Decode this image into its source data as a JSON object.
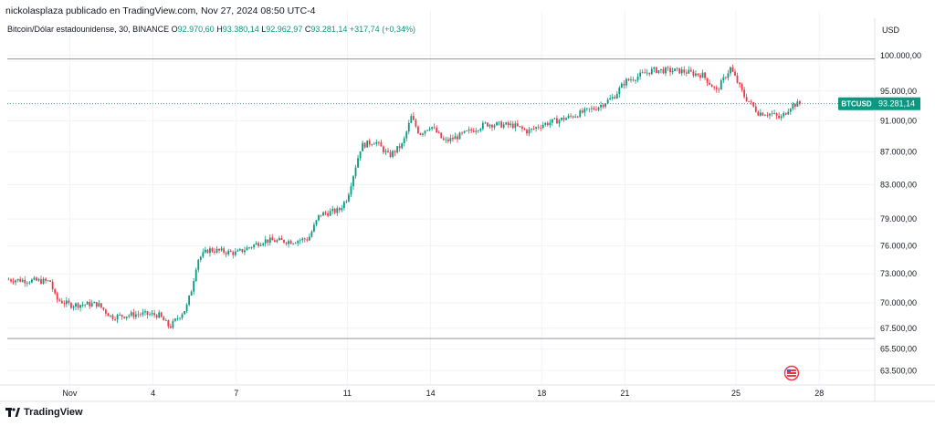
{
  "header": {
    "published_by": "nickolasplaza publicado en TradingView.com, Nov 27, 2024 08:50 UTC-4"
  },
  "legend": {
    "symbol_desc": "Bitcoin/Dólar estadounidense, 30, BINANCE",
    "open_label": "O",
    "open": "92.970,60",
    "high_label": "H",
    "high": "93.380,14",
    "low_label": "L",
    "low": "92.962,97",
    "close_label": "C",
    "close": "93.281,14",
    "change": "+317,74 (+0,34%)"
  },
  "currency": "USD",
  "footer": {
    "brand": "TradingView"
  },
  "colors": {
    "up": "#089981",
    "down": "#f23645",
    "grid": "#f0f3fa",
    "axis_text": "#131722"
  },
  "chart_data": {
    "type": "candlestick",
    "symbol": "BTCUSD",
    "last_price": 93281.14,
    "last_price_label": "93.281,14",
    "y_scale": "log",
    "ylim": [
      62200,
      102500
    ],
    "y_ticks": [
      {
        "value": 100000,
        "label": "100.000,00"
      },
      {
        "value": 95000,
        "label": "95.000,00"
      },
      {
        "value": 91000,
        "label": "91.000,00"
      },
      {
        "value": 87000,
        "label": "87.000,00"
      },
      {
        "value": 83000,
        "label": "83.000,00"
      },
      {
        "value": 79000,
        "label": "79.000,00"
      },
      {
        "value": 76000,
        "label": "76.000,00"
      },
      {
        "value": 73000,
        "label": "73.000,00"
      },
      {
        "value": 70000,
        "label": "70.000,00"
      },
      {
        "value": 67500,
        "label": "67.500,00"
      },
      {
        "value": 65500,
        "label": "65.500,00"
      },
      {
        "value": 63500,
        "label": "63.500,00"
      }
    ],
    "x_ticks": [
      {
        "day": 1,
        "label": "Nov"
      },
      {
        "day": 4,
        "label": "4"
      },
      {
        "day": 7,
        "label": "7"
      },
      {
        "day": 11,
        "label": "11"
      },
      {
        "day": 14,
        "label": "14"
      },
      {
        "day": 18,
        "label": "18"
      },
      {
        "day": 21,
        "label": "21"
      },
      {
        "day": 25,
        "label": "25"
      },
      {
        "day": 28,
        "label": "28"
      }
    ],
    "xlim_days": [
      -1.25,
      30.0
    ],
    "horizontal_lines": [
      99500,
      66500
    ],
    "price_path": [
      {
        "day": -1.2,
        "price": 72400
      },
      {
        "day": 0.3,
        "price": 72200
      },
      {
        "day": 0.5,
        "price": 70400
      },
      {
        "day": 1.0,
        "price": 69800
      },
      {
        "day": 2.0,
        "price": 69900
      },
      {
        "day": 2.5,
        "price": 68600
      },
      {
        "day": 3.5,
        "price": 68900
      },
      {
        "day": 4.2,
        "price": 68800
      },
      {
        "day": 4.6,
        "price": 67600
      },
      {
        "day": 5.2,
        "price": 69500
      },
      {
        "day": 5.4,
        "price": 71500
      },
      {
        "day": 5.6,
        "price": 74500
      },
      {
        "day": 6.0,
        "price": 75600
      },
      {
        "day": 7.0,
        "price": 75200
      },
      {
        "day": 8.0,
        "price": 76600
      },
      {
        "day": 9.0,
        "price": 76500
      },
      {
        "day": 9.6,
        "price": 76800
      },
      {
        "day": 10.0,
        "price": 79500
      },
      {
        "day": 10.7,
        "price": 80000
      },
      {
        "day": 11.0,
        "price": 81500
      },
      {
        "day": 11.5,
        "price": 87800
      },
      {
        "day": 12.0,
        "price": 88400
      },
      {
        "day": 12.5,
        "price": 86500
      },
      {
        "day": 13.0,
        "price": 88000
      },
      {
        "day": 13.3,
        "price": 91500
      },
      {
        "day": 13.6,
        "price": 89300
      },
      {
        "day": 14.0,
        "price": 90400
      },
      {
        "day": 14.5,
        "price": 88300
      },
      {
        "day": 15.0,
        "price": 89000
      },
      {
        "day": 16.0,
        "price": 90600
      },
      {
        "day": 17.0,
        "price": 90400
      },
      {
        "day": 17.5,
        "price": 89600
      },
      {
        "day": 18.0,
        "price": 90500
      },
      {
        "day": 19.0,
        "price": 91500
      },
      {
        "day": 20.0,
        "price": 92800
      },
      {
        "day": 20.6,
        "price": 94200
      },
      {
        "day": 21.0,
        "price": 96300
      },
      {
        "day": 22.0,
        "price": 97900
      },
      {
        "day": 23.0,
        "price": 97800
      },
      {
        "day": 23.8,
        "price": 97200
      },
      {
        "day": 24.3,
        "price": 95000
      },
      {
        "day": 24.8,
        "price": 98200
      },
      {
        "day": 25.3,
        "price": 94300
      },
      {
        "day": 25.8,
        "price": 92100
      },
      {
        "day": 26.3,
        "price": 91900
      },
      {
        "day": 26.6,
        "price": 91300
      },
      {
        "day": 27.0,
        "price": 93100
      },
      {
        "day": 27.3,
        "price": 93281
      }
    ]
  }
}
